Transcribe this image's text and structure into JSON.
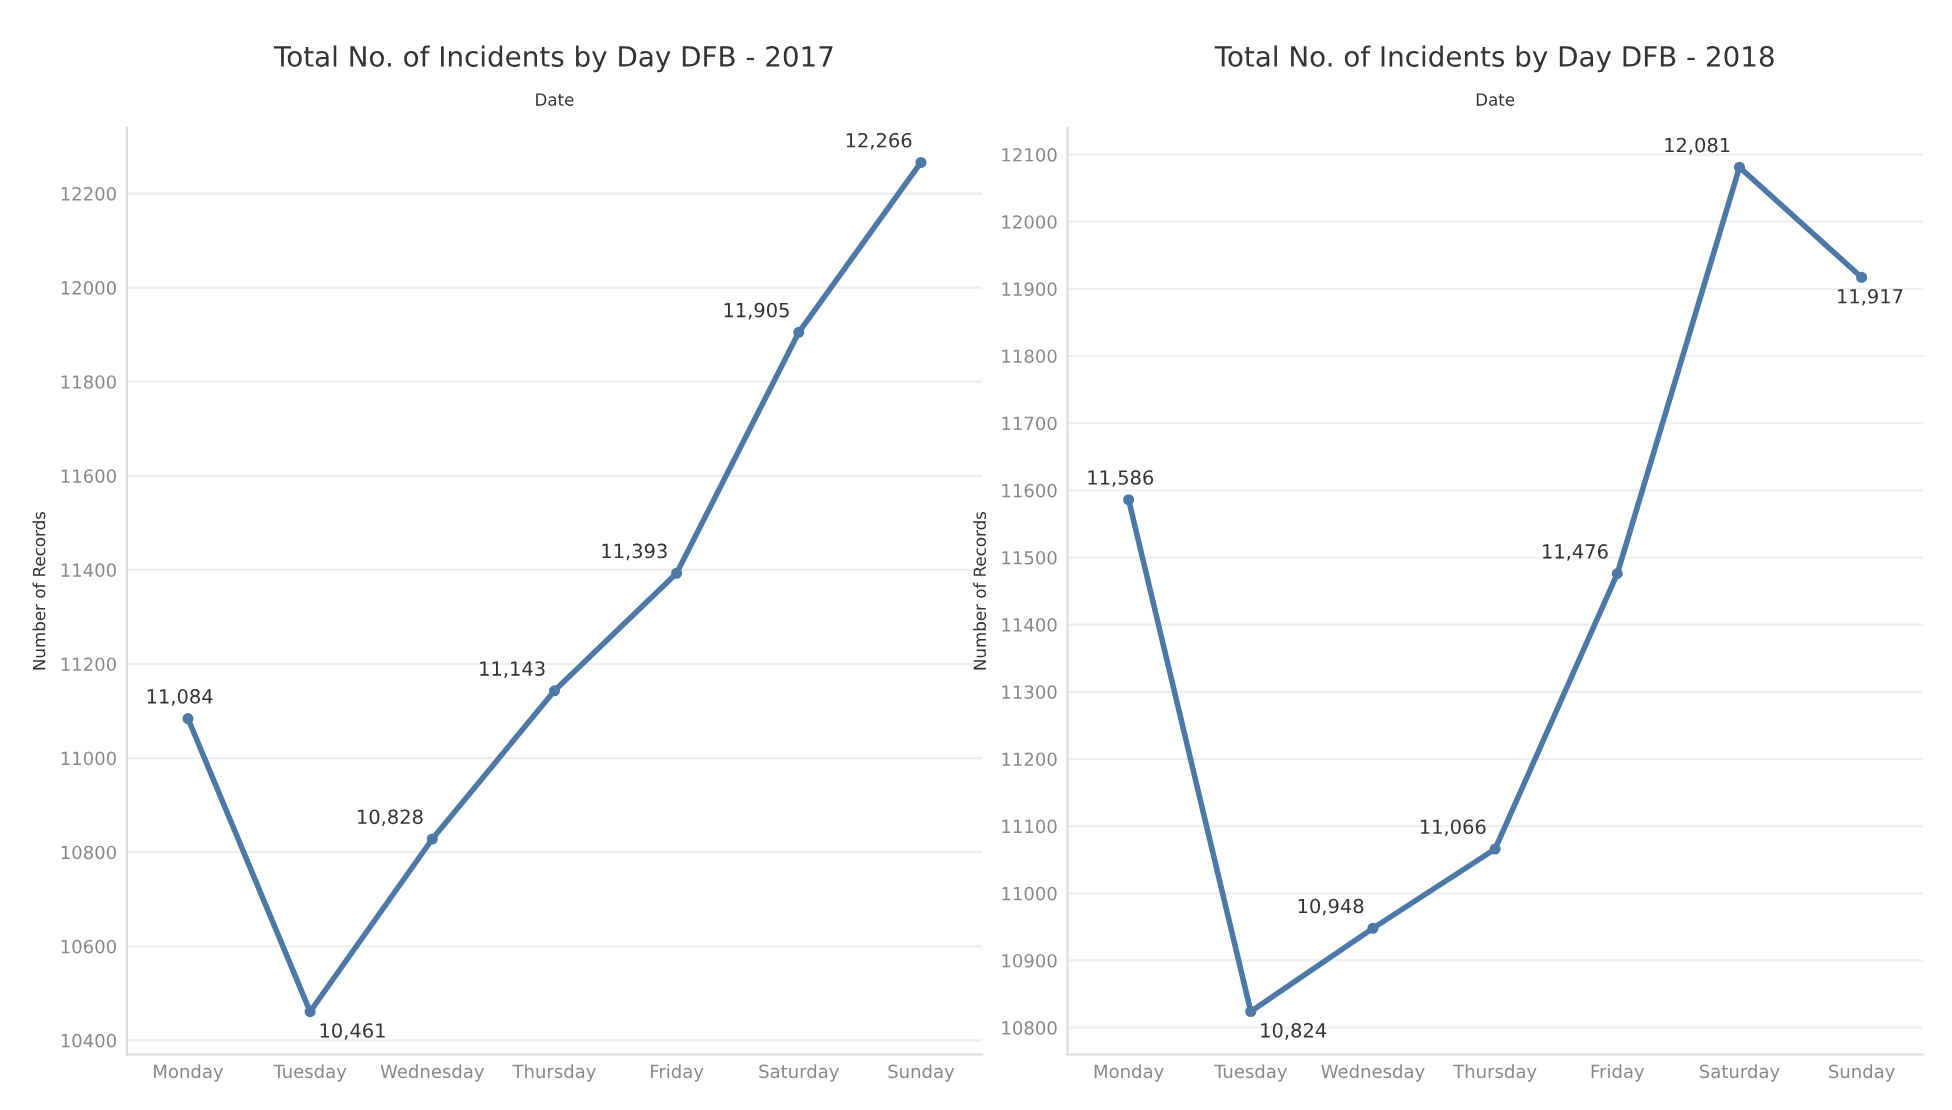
{
  "chart_data": [
    {
      "type": "line",
      "title": "Total No. of Incidents by Day DFB - 2017",
      "xlabel": "Date",
      "ylabel": "Number of Records",
      "categories": [
        "Monday",
        "Tuesday",
        "Wednesday",
        "Thursday",
        "Friday",
        "Saturday",
        "Sunday"
      ],
      "series": [
        {
          "color": "#4e79a7",
          "values": [
            11084,
            10461,
            10828,
            11143,
            11393,
            11905,
            12266
          ],
          "value_labels": [
            "11,084",
            "10,461",
            "10,828",
            "11,143",
            "11,393",
            "11,905",
            "12,266"
          ]
        }
      ],
      "ylim": [
        10370,
        12340
      ],
      "yticks": [
        10400,
        10600,
        10800,
        11000,
        11200,
        11400,
        11600,
        11800,
        12000,
        12200
      ],
      "grid": "y",
      "marker": "circle",
      "line_style": "solid"
    },
    {
      "type": "line",
      "title": "Total No. of Incidents by Day DFB - 2018",
      "xlabel": "Date",
      "ylabel": "Number of Records",
      "categories": [
        "Monday",
        "Tuesday",
        "Wednesday",
        "Thursday",
        "Friday",
        "Saturday",
        "Sunday"
      ],
      "series": [
        {
          "color": "#4e79a7",
          "values": [
            11586,
            10824,
            10948,
            11066,
            11476,
            12081,
            11917
          ],
          "value_labels": [
            "11,586",
            "10,824",
            "10,948",
            "11,066",
            "11,476",
            "12,081",
            "11,917"
          ]
        }
      ],
      "ylim": [
        10760,
        12140
      ],
      "yticks": [
        10800,
        10900,
        11000,
        11100,
        11200,
        11300,
        11400,
        11500,
        11600,
        11700,
        11800,
        11900,
        12000,
        12100
      ],
      "grid": "y",
      "marker": "circle",
      "line_style": "solid"
    }
  ]
}
